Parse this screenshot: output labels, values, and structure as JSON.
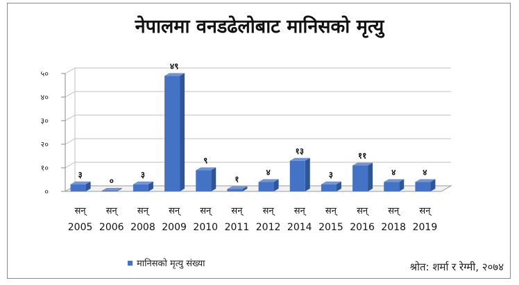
{
  "chart_data": {
    "type": "bar",
    "title": "नेपालमा वनडढेलोबाट मानिसको मृत्यु",
    "category_prefix": "सन्",
    "categories": [
      "2005",
      "2006",
      "2008",
      "2009",
      "2010",
      "2011",
      "2012",
      "2014",
      "2015",
      "2016",
      "2018",
      "2019"
    ],
    "series": [
      {
        "name": "मानिसको मृत्यु संख्या",
        "values": [
          3,
          0,
          3,
          49,
          9,
          1,
          4,
          13,
          3,
          11,
          4,
          4
        ],
        "data_labels": [
          "३",
          "०",
          "३",
          "४९",
          "९",
          "१",
          "४",
          "१३",
          "३",
          "११",
          "४",
          "४"
        ]
      }
    ],
    "ylim": [
      0,
      50
    ],
    "yticks": [
      0,
      10,
      20,
      30,
      40,
      50
    ],
    "ytick_labels": [
      "०",
      "१०",
      "२०",
      "३०",
      "४०",
      "५०"
    ],
    "grid": true,
    "legend_position": "bottom-left",
    "colors": {
      "bar_front": "#4472c4",
      "bar_side": "#2e5597",
      "bar_top": "#6f95d8",
      "grid": "#bfbfbf"
    }
  },
  "source_note": "श्रोत: शर्मा र रेग्मी, २०७४"
}
